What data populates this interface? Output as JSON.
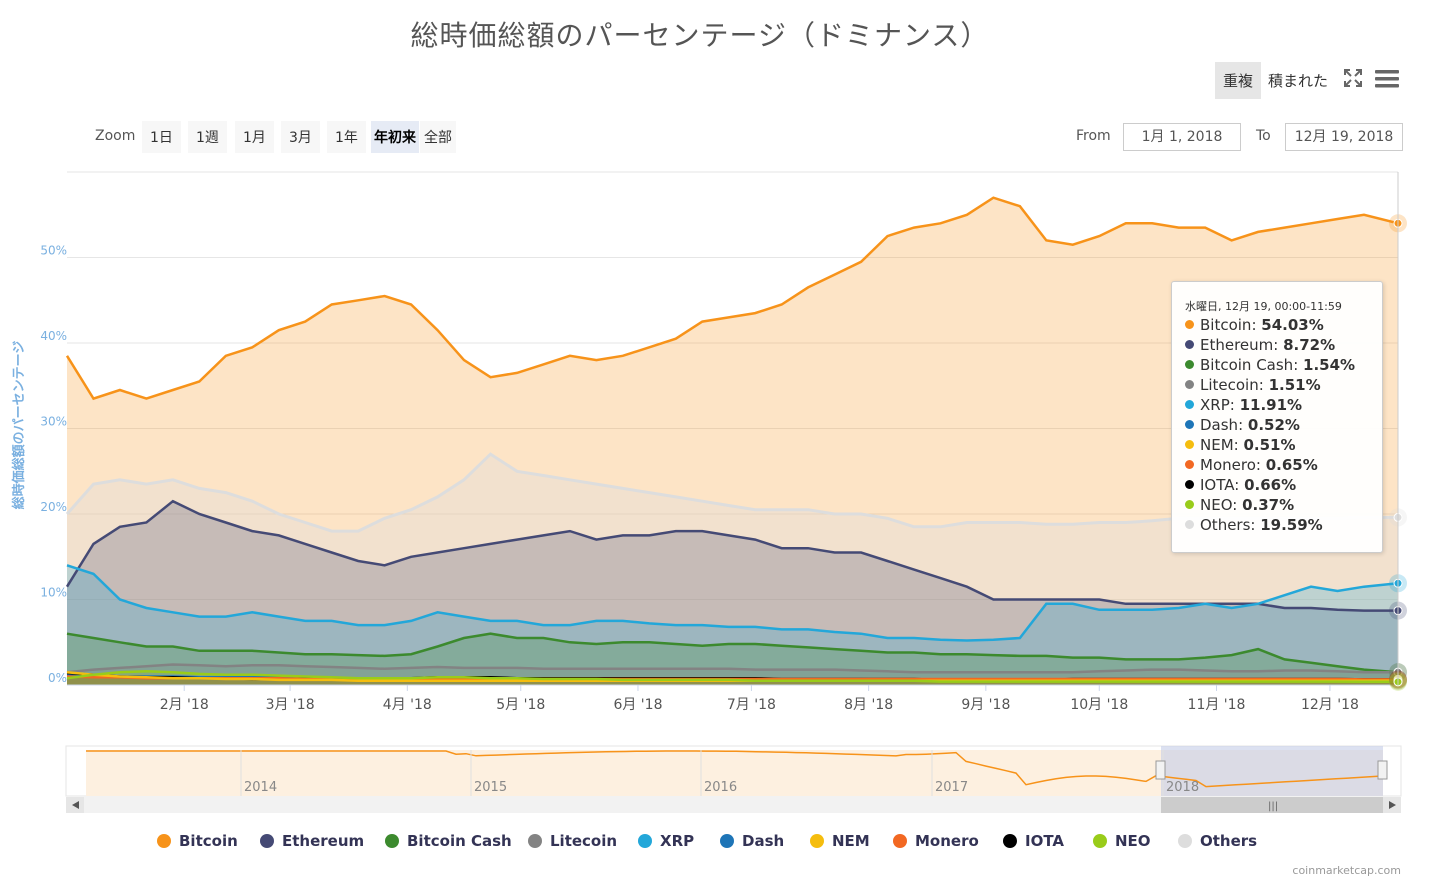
{
  "title": "総時価総額のパーセンテージ（ドミナンス）",
  "toolbar": {
    "overlap_label": "重複",
    "stacked_label": "積まれた",
    "fullscreen_icon": "expand-icon",
    "menu_icon": "hamburger-menu-icon"
  },
  "zoom": {
    "label": "Zoom",
    "buttons": [
      "1日",
      "1週",
      "1月",
      "3月",
      "1年",
      "年初来",
      "全部"
    ],
    "active": "年初来"
  },
  "range": {
    "from_label": "From",
    "from_value": "1月 1, 2018",
    "to_label": "To",
    "to_value": "12月 19, 2018"
  },
  "tooltip": {
    "date": "水曜日, 12月 19, 00:00-11:59",
    "rows": [
      {
        "name": "Bitcoin",
        "value": "54.03%"
      },
      {
        "name": "Ethereum",
        "value": "8.72%"
      },
      {
        "name": "Bitcoin Cash",
        "value": "1.54%"
      },
      {
        "name": "Litecoin",
        "value": "1.51%"
      },
      {
        "name": "XRP",
        "value": "11.91%"
      },
      {
        "name": "Dash",
        "value": "0.52%"
      },
      {
        "name": "NEM",
        "value": "0.51%"
      },
      {
        "name": "Monero",
        "value": "0.65%"
      },
      {
        "name": "IOTA",
        "value": "0.66%"
      },
      {
        "name": "NEO",
        "value": "0.37%"
      },
      {
        "name": "Others",
        "value": "19.59%"
      }
    ]
  },
  "navigator": {
    "years": [
      "2014",
      "2015",
      "2016",
      "2017",
      "2018"
    ],
    "scroll_grip_icon": "grip-icon",
    "left_arrow_icon": "arrow-left-icon",
    "right_arrow_icon": "arrow-right-icon"
  },
  "credits": "coinmarketcap.com",
  "chart_data": {
    "type": "area",
    "title": "総時価総額のパーセンテージ（ドミナンス）",
    "ylabel": "総時価総額のパーセンテージ",
    "xlabel": "",
    "x_ticks": [
      "2月 '18",
      "3月 '18",
      "4月 '18",
      "5月 '18",
      "6月 '18",
      "7月 '18",
      "8月 '18",
      "9月 '18",
      "10月 '18",
      "11月 '18",
      "12月 '18"
    ],
    "y_ticks": [
      "0%",
      "10%",
      "20%",
      "30%",
      "40%",
      "50%"
    ],
    "ylim": [
      0,
      60
    ],
    "xlim_days": [
      0,
      352
    ],
    "grid": true,
    "legend": "bottom",
    "colors": {
      "Bitcoin": "#f7931a",
      "Ethereum": "#454a75",
      "Bitcoin Cash": "#3c8a2e",
      "Litecoin": "#838383",
      "XRP": "#23a7d9",
      "Dash": "#1e75b7",
      "NEM": "#f5bd0e",
      "Monero": "#f26822",
      "IOTA": "#000000",
      "NEO": "#99cc1a",
      "Others": "#dddddd"
    },
    "x_day": [
      0,
      7,
      14,
      21,
      28,
      35,
      42,
      49,
      56,
      63,
      70,
      77,
      84,
      91,
      98,
      105,
      112,
      119,
      126,
      133,
      140,
      147,
      154,
      161,
      168,
      175,
      182,
      189,
      196,
      203,
      210,
      217,
      224,
      231,
      238,
      245,
      252,
      259,
      266,
      273,
      280,
      287,
      294,
      301,
      308,
      315,
      322,
      329,
      336,
      343,
      352
    ],
    "series": [
      {
        "name": "Bitcoin",
        "values": [
          38.5,
          33.5,
          34.5,
          33.5,
          34.5,
          35.5,
          38.5,
          39.5,
          41.5,
          42.5,
          44.5,
          45.0,
          45.5,
          44.5,
          41.5,
          38.0,
          36.0,
          36.5,
          37.5,
          38.5,
          38.0,
          38.5,
          39.5,
          40.5,
          42.5,
          43.0,
          43.5,
          44.5,
          46.5,
          48.0,
          49.5,
          52.5,
          53.5,
          54.0,
          55.0,
          57.0,
          56.0,
          52.0,
          51.5,
          52.5,
          54.0,
          54.0,
          53.5,
          53.5,
          52.0,
          53.0,
          53.5,
          54.0,
          54.5,
          55.0,
          54.0
        ]
      },
      {
        "name": "Ethereum",
        "values": [
          11.5,
          16.5,
          18.5,
          19.0,
          21.5,
          20.0,
          19.0,
          18.0,
          17.5,
          16.5,
          15.5,
          14.5,
          14.0,
          15.0,
          15.5,
          16.0,
          16.5,
          17.0,
          17.5,
          18.0,
          17.0,
          17.5,
          17.5,
          18.0,
          18.0,
          17.5,
          17.0,
          16.0,
          16.0,
          15.5,
          15.5,
          14.5,
          13.5,
          12.5,
          11.5,
          10.0,
          10.0,
          10.0,
          10.0,
          10.0,
          9.5,
          9.5,
          9.5,
          9.5,
          9.5,
          9.5,
          9.0,
          9.0,
          8.8,
          8.7,
          8.7
        ]
      },
      {
        "name": "Bitcoin Cash",
        "values": [
          6.0,
          5.5,
          5.0,
          4.5,
          4.5,
          4.0,
          4.0,
          4.0,
          3.8,
          3.6,
          3.6,
          3.5,
          3.4,
          3.6,
          4.5,
          5.5,
          6.0,
          5.5,
          5.5,
          5.0,
          4.8,
          5.0,
          5.0,
          4.8,
          4.6,
          4.8,
          4.8,
          4.6,
          4.4,
          4.2,
          4.0,
          3.8,
          3.8,
          3.6,
          3.6,
          3.5,
          3.4,
          3.4,
          3.2,
          3.2,
          3.0,
          3.0,
          3.0,
          3.2,
          3.5,
          4.2,
          3.0,
          2.6,
          2.2,
          1.8,
          1.5
        ]
      },
      {
        "name": "Litecoin",
        "values": [
          1.5,
          1.8,
          2.0,
          2.2,
          2.4,
          2.3,
          2.2,
          2.3,
          2.3,
          2.2,
          2.1,
          2.0,
          1.9,
          2.0,
          2.1,
          2.0,
          2.0,
          2.0,
          1.9,
          1.9,
          1.9,
          1.9,
          1.9,
          1.9,
          1.9,
          1.9,
          1.8,
          1.8,
          1.8,
          1.8,
          1.7,
          1.6,
          1.5,
          1.5,
          1.5,
          1.5,
          1.5,
          1.5,
          1.5,
          1.6,
          1.7,
          1.8,
          1.8,
          1.7,
          1.6,
          1.6,
          1.7,
          1.7,
          1.6,
          1.5,
          1.5
        ]
      },
      {
        "name": "XRP",
        "values": [
          14.0,
          13.0,
          10.0,
          9.0,
          8.5,
          8.0,
          8.0,
          8.5,
          8.0,
          7.5,
          7.5,
          7.0,
          7.0,
          7.5,
          8.5,
          8.0,
          7.5,
          7.5,
          7.0,
          7.0,
          7.5,
          7.5,
          7.2,
          7.0,
          7.0,
          6.8,
          6.8,
          6.5,
          6.5,
          6.2,
          6.0,
          5.5,
          5.5,
          5.3,
          5.2,
          5.3,
          5.5,
          9.5,
          9.5,
          8.8,
          8.8,
          8.8,
          9.0,
          9.5,
          9.0,
          9.5,
          10.5,
          11.5,
          11.0,
          11.5,
          11.9
        ]
      },
      {
        "name": "Dash",
        "values": [
          1.2,
          1.1,
          1.0,
          1.0,
          1.0,
          0.9,
          0.9,
          0.9,
          0.9,
          0.8,
          0.8,
          0.8,
          0.8,
          0.8,
          0.8,
          0.8,
          0.8,
          0.8,
          0.8,
          0.8,
          0.7,
          0.7,
          0.7,
          0.7,
          0.7,
          0.7,
          0.7,
          0.7,
          0.7,
          0.7,
          0.7,
          0.6,
          0.6,
          0.6,
          0.6,
          0.6,
          0.6,
          0.6,
          0.6,
          0.6,
          0.6,
          0.6,
          0.6,
          0.6,
          0.6,
          0.6,
          0.6,
          0.6,
          0.55,
          0.55,
          0.52
        ]
      },
      {
        "name": "NEM",
        "values": [
          1.5,
          1.2,
          1.0,
          0.9,
          0.8,
          0.8,
          0.7,
          0.7,
          0.6,
          0.6,
          0.6,
          0.5,
          0.5,
          0.5,
          0.5,
          0.5,
          0.5,
          0.5,
          0.5,
          0.5,
          0.5,
          0.5,
          0.5,
          0.5,
          0.5,
          0.5,
          0.5,
          0.5,
          0.5,
          0.5,
          0.5,
          0.5,
          0.5,
          0.5,
          0.5,
          0.5,
          0.5,
          0.5,
          0.5,
          0.5,
          0.5,
          0.5,
          0.5,
          0.5,
          0.5,
          0.5,
          0.5,
          0.5,
          0.5,
          0.5,
          0.51
        ]
      },
      {
        "name": "Monero",
        "values": [
          1.0,
          0.9,
          0.9,
          0.8,
          0.8,
          0.8,
          0.8,
          0.8,
          0.8,
          0.7,
          0.7,
          0.7,
          0.7,
          0.7,
          0.7,
          0.7,
          0.7,
          0.7,
          0.7,
          0.7,
          0.7,
          0.7,
          0.7,
          0.7,
          0.7,
          0.7,
          0.7,
          0.7,
          0.7,
          0.7,
          0.7,
          0.7,
          0.7,
          0.7,
          0.7,
          0.7,
          0.7,
          0.7,
          0.7,
          0.7,
          0.7,
          0.7,
          0.7,
          0.7,
          0.7,
          0.7,
          0.7,
          0.7,
          0.7,
          0.65,
          0.65
        ]
      },
      {
        "name": "IOTA",
        "values": [
          1.4,
          1.2,
          1.0,
          0.9,
          0.9,
          0.8,
          0.8,
          0.7,
          0.7,
          0.7,
          0.7,
          0.7,
          0.7,
          0.8,
          0.9,
          0.9,
          0.9,
          0.8,
          0.8,
          0.8,
          0.8,
          0.8,
          0.8,
          0.8,
          0.8,
          0.8,
          0.8,
          0.7,
          0.7,
          0.7,
          0.7,
          0.7,
          0.7,
          0.6,
          0.6,
          0.6,
          0.6,
          0.6,
          0.7,
          0.7,
          0.7,
          0.7,
          0.7,
          0.7,
          0.7,
          0.7,
          0.7,
          0.7,
          0.7,
          0.66,
          0.66
        ]
      },
      {
        "name": "NEO",
        "values": [
          0.8,
          1.2,
          1.5,
          1.6,
          1.5,
          1.3,
          1.2,
          1.2,
          1.1,
          1.0,
          0.9,
          0.8,
          0.8,
          0.8,
          0.9,
          0.9,
          0.8,
          0.8,
          0.7,
          0.7,
          0.7,
          0.6,
          0.6,
          0.6,
          0.6,
          0.6,
          0.5,
          0.5,
          0.5,
          0.5,
          0.5,
          0.5,
          0.5,
          0.4,
          0.4,
          0.4,
          0.4,
          0.4,
          0.4,
          0.4,
          0.4,
          0.4,
          0.4,
          0.4,
          0.4,
          0.4,
          0.4,
          0.4,
          0.4,
          0.37,
          0.37
        ]
      },
      {
        "name": "Others",
        "values": [
          20.0,
          23.5,
          24.0,
          23.5,
          24.0,
          23.0,
          22.5,
          21.5,
          20.0,
          19.0,
          18.0,
          18.0,
          19.5,
          20.5,
          22.0,
          24.0,
          27.0,
          25.0,
          24.5,
          24.0,
          23.5,
          23.0,
          22.5,
          22.0,
          21.5,
          21.0,
          20.5,
          20.5,
          20.5,
          20.0,
          20.0,
          19.5,
          18.5,
          18.5,
          19.0,
          19.0,
          19.0,
          18.8,
          18.8,
          19.0,
          19.0,
          19.2,
          19.5,
          19.5,
          19.5,
          19.5,
          19.5,
          19.5,
          19.5,
          19.6,
          19.6
        ]
      }
    ]
  }
}
